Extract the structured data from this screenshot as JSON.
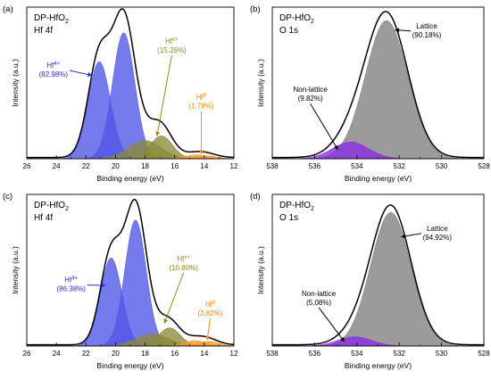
{
  "chart_data": [
    {
      "panel": "(a)",
      "type": "area",
      "title_lines": [
        "DP-HfO",
        "2",
        "Hf 4f"
      ],
      "xlabel": "Binding energy (eV)",
      "ylabel": "Intensity (a.u.)",
      "xlim": [
        26,
        12
      ],
      "xticks": [
        26,
        24,
        22,
        20,
        18,
        16,
        14,
        12
      ],
      "ylim": [
        0,
        1
      ],
      "envelope_color": "#000000",
      "peaks": [
        {
          "species": "Hf4+",
          "center": 21.1,
          "width": 0.75,
          "height": 0.64,
          "color": "#4f56e6"
        },
        {
          "species": "Hf4+",
          "center": 19.45,
          "width": 0.75,
          "height": 0.83,
          "color": "#4f56e6"
        },
        {
          "species": "Hfx+",
          "center": 18.0,
          "width": 1.1,
          "height": 0.12,
          "color": "#8a8a3a"
        },
        {
          "species": "Hfx+",
          "center": 16.9,
          "width": 0.75,
          "height": 0.15,
          "color": "#8a8a3a"
        },
        {
          "species": "Hf0",
          "center": 14.6,
          "width": 0.75,
          "height": 0.025,
          "color": "#f39a2b"
        },
        {
          "species": "Hf0",
          "center": 13.8,
          "width": 0.75,
          "height": 0.018,
          "color": "#f39a2b"
        }
      ],
      "annotations": [
        {
          "text_main": "Hf",
          "text_sup": "4+",
          "text_pct": "(82.98%)",
          "color": "#2a2ad6",
          "label_x": 24.2,
          "label_y": 0.6,
          "arrow_to": [
            21.6,
            0.55
          ]
        },
        {
          "text_main": "Hf",
          "text_sup": "x+",
          "text_pct": "(15.26%)",
          "color": "#8a8a1e",
          "label_x": 16.2,
          "label_y": 0.76,
          "arrow_to": [
            17.2,
            0.15
          ]
        },
        {
          "text_main": "Hf",
          "text_sup": "0",
          "text_pct": "(1.78%)",
          "color": "#f08a18",
          "label_x": 14.2,
          "label_y": 0.39,
          "arrow_to": [
            14.2,
            0.03
          ]
        }
      ]
    },
    {
      "panel": "(b)",
      "type": "area",
      "title_lines": [
        "DP-HfO",
        "2",
        "O 1s"
      ],
      "xlabel": "Binding energy (eV)",
      "ylabel": "Intensity (a.u.)",
      "xlim": [
        538,
        528
      ],
      "xticks": [
        538,
        536,
        534,
        532,
        530,
        528
      ],
      "ylim": [
        0,
        1
      ],
      "envelope_color": "#000000",
      "peaks": [
        {
          "species": "Lattice",
          "center": 532.6,
          "width": 1.0,
          "height": 0.91,
          "color": "#7f7f7f"
        },
        {
          "species": "Non-lattice",
          "center": 534.3,
          "width": 0.85,
          "height": 0.11,
          "color": "#8a2be2"
        }
      ],
      "annotations": [
        {
          "text_main": "Lattice",
          "text_pct": "(90.18%)",
          "color": "#000000",
          "label_x": 530.7,
          "label_y": 0.86,
          "arrow_to": [
            532.2,
            0.85
          ]
        },
        {
          "text_main": "Non-lattice",
          "text_pct": "(9.82%)",
          "color": "#000000",
          "label_x": 536.2,
          "label_y": 0.44,
          "arrow_to": [
            534.9,
            0.06
          ]
        }
      ]
    },
    {
      "panel": "(c)",
      "type": "area",
      "title_lines": [
        "DP-HfO",
        "2",
        "Hf 4f"
      ],
      "xlabel": "Binding energy (eV)",
      "ylabel": "Intensity (a.u.)",
      "xlim": [
        26,
        12
      ],
      "xticks": [
        26,
        24,
        22,
        20,
        18,
        16,
        14,
        12
      ],
      "ylim": [
        0,
        1
      ],
      "envelope_color": "#000000",
      "peaks": [
        {
          "species": "Hf4+",
          "center": 20.3,
          "width": 0.72,
          "height": 0.58,
          "color": "#4f56e6"
        },
        {
          "species": "Hf4+",
          "center": 18.65,
          "width": 0.72,
          "height": 0.83,
          "color": "#4f56e6"
        },
        {
          "species": "Hfx+",
          "center": 17.5,
          "width": 1.1,
          "height": 0.08,
          "color": "#8a8a3a"
        },
        {
          "species": "Hfx+",
          "center": 16.35,
          "width": 0.72,
          "height": 0.12,
          "color": "#8a8a3a"
        },
        {
          "species": "Hf0",
          "center": 14.6,
          "width": 0.72,
          "height": 0.035,
          "color": "#f39a2b"
        },
        {
          "species": "Hf0",
          "center": 13.7,
          "width": 0.72,
          "height": 0.03,
          "color": "#f39a2b"
        }
      ],
      "annotations": [
        {
          "text_main": "Hf",
          "text_sup": "4+",
          "text_pct": "(86.38%)",
          "color": "#2a2ad6",
          "label_x": 23.0,
          "label_y": 0.42,
          "arrow_to": [
            20.7,
            0.4
          ]
        },
        {
          "text_main": "Hf",
          "text_sup": "x+",
          "text_pct": "(10.80%)",
          "color": "#8a8a1e",
          "label_x": 15.4,
          "label_y": 0.56,
          "arrow_to": [
            16.7,
            0.15
          ]
        },
        {
          "text_main": "Hf",
          "text_sup": "0",
          "text_pct": "(2.82%)",
          "color": "#f08a18",
          "label_x": 13.6,
          "label_y": 0.26,
          "arrow_to": [
            13.8,
            0.04
          ]
        }
      ]
    },
    {
      "panel": "(d)",
      "type": "area",
      "title_lines": [
        "DP-HfO",
        "2",
        "O 1s"
      ],
      "xlabel": "Binding energy (eV)",
      "ylabel": "Intensity (a.u.)",
      "xlim": [
        538,
        528
      ],
      "xticks": [
        538,
        536,
        534,
        532,
        530,
        528
      ],
      "ylim": [
        0,
        1
      ],
      "envelope_color": "#000000",
      "peaks": [
        {
          "species": "Lattice",
          "center": 532.4,
          "width": 0.95,
          "height": 0.88,
          "color": "#7f7f7f"
        },
        {
          "species": "Non-lattice",
          "center": 534.1,
          "width": 0.8,
          "height": 0.06,
          "color": "#8a2be2"
        }
      ],
      "annotations": [
        {
          "text_main": "Lattice",
          "text_pct": "(94.92%)",
          "color": "#000000",
          "label_x": 530.2,
          "label_y": 0.76,
          "arrow_to": [
            531.9,
            0.72
          ]
        },
        {
          "text_main": "Non-lattice",
          "text_pct": "(5.08%)",
          "color": "#000000",
          "label_x": 535.8,
          "label_y": 0.33,
          "arrow_to": [
            534.6,
            0.03
          ]
        }
      ]
    }
  ]
}
